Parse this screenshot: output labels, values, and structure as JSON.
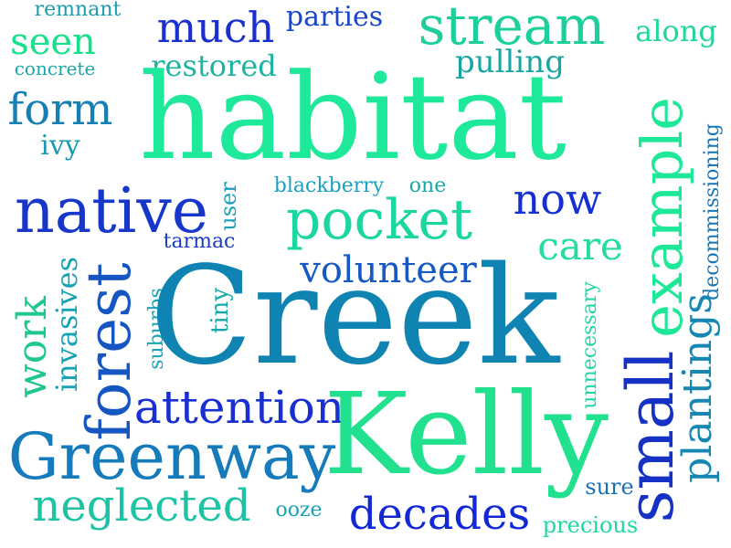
{
  "words": [
    {
      "key": "remnant",
      "text": "remnant",
      "color": "#1a9fb0"
    },
    {
      "key": "seen",
      "text": "seen",
      "color": "#16e08a"
    },
    {
      "key": "concrete",
      "text": "concrete",
      "color": "#1aa7a7"
    },
    {
      "key": "much",
      "text": "much",
      "color": "#1b2fd1"
    },
    {
      "key": "parties",
      "text": "parties",
      "color": "#1a47c8"
    },
    {
      "key": "stream",
      "text": "stream",
      "color": "#1dcf9b"
    },
    {
      "key": "along",
      "text": "along",
      "color": "#20d69a"
    },
    {
      "key": "restored",
      "text": "restored",
      "color": "#1cb3a0"
    },
    {
      "key": "pulling",
      "text": "pulling",
      "color": "#1aa5a4"
    },
    {
      "key": "habitat",
      "text": "habitat",
      "color": "#1ee89a"
    },
    {
      "key": "form",
      "text": "form",
      "color": "#1680b5"
    },
    {
      "key": "ivy",
      "text": "ivy",
      "color": "#199ab2"
    },
    {
      "key": "example",
      "text": "example",
      "color": "#1ee898"
    },
    {
      "key": "decommissioning",
      "text": "decommissioning",
      "color": "#1577b8"
    },
    {
      "key": "native",
      "text": "native",
      "color": "#1637c9"
    },
    {
      "key": "user",
      "text": "user",
      "color": "#1b9fbb"
    },
    {
      "key": "blackberry",
      "text": "blackberry",
      "color": "#1aa1c0"
    },
    {
      "key": "one",
      "text": "one",
      "color": "#17a9a6"
    },
    {
      "key": "now",
      "text": "now",
      "color": "#1530d2"
    },
    {
      "key": "pocket",
      "text": "pocket",
      "color": "#1cd6a0"
    },
    {
      "key": "tarmac",
      "text": "tarmac",
      "color": "#1a3cc6"
    },
    {
      "key": "care",
      "text": "care",
      "color": "#22dca0"
    },
    {
      "key": "forest",
      "text": "forest",
      "color": "#1656c2"
    },
    {
      "key": "volunteer",
      "text": "volunteer",
      "color": "#1658c6"
    },
    {
      "key": "work",
      "text": "work",
      "color": "#1ec78c"
    },
    {
      "key": "invasives",
      "text": "invasives",
      "color": "#17a3b5"
    },
    {
      "key": "suburbs",
      "text": "suburbs",
      "color": "#17a3b8"
    },
    {
      "key": "tiny",
      "text": "tiny",
      "color": "#17a9aa"
    },
    {
      "key": "Creek",
      "text": "Creek",
      "color": "#0f84b2"
    },
    {
      "key": "unnecessary",
      "text": "unnecessary",
      "color": "#20d6a6"
    },
    {
      "key": "plantings",
      "text": "plantings",
      "color": "#1587b2"
    },
    {
      "key": "small",
      "text": "small",
      "color": "#1632c4"
    },
    {
      "key": "attention",
      "text": "attention",
      "color": "#1a2fd0"
    },
    {
      "key": "Greenway",
      "text": "Greenway",
      "color": "#167bbb"
    },
    {
      "key": "Kelly",
      "text": "Kelly",
      "color": "#22e18e"
    },
    {
      "key": "neglected",
      "text": "neglected",
      "color": "#1ec3a4"
    },
    {
      "key": "ooze",
      "text": "ooze",
      "color": "#1aa3b4"
    },
    {
      "key": "decades",
      "text": "decades",
      "color": "#1228d4"
    },
    {
      "key": "sure",
      "text": "sure",
      "color": "#1a70b4"
    },
    {
      "key": "precious",
      "text": "precious",
      "color": "#20d8a2"
    }
  ]
}
